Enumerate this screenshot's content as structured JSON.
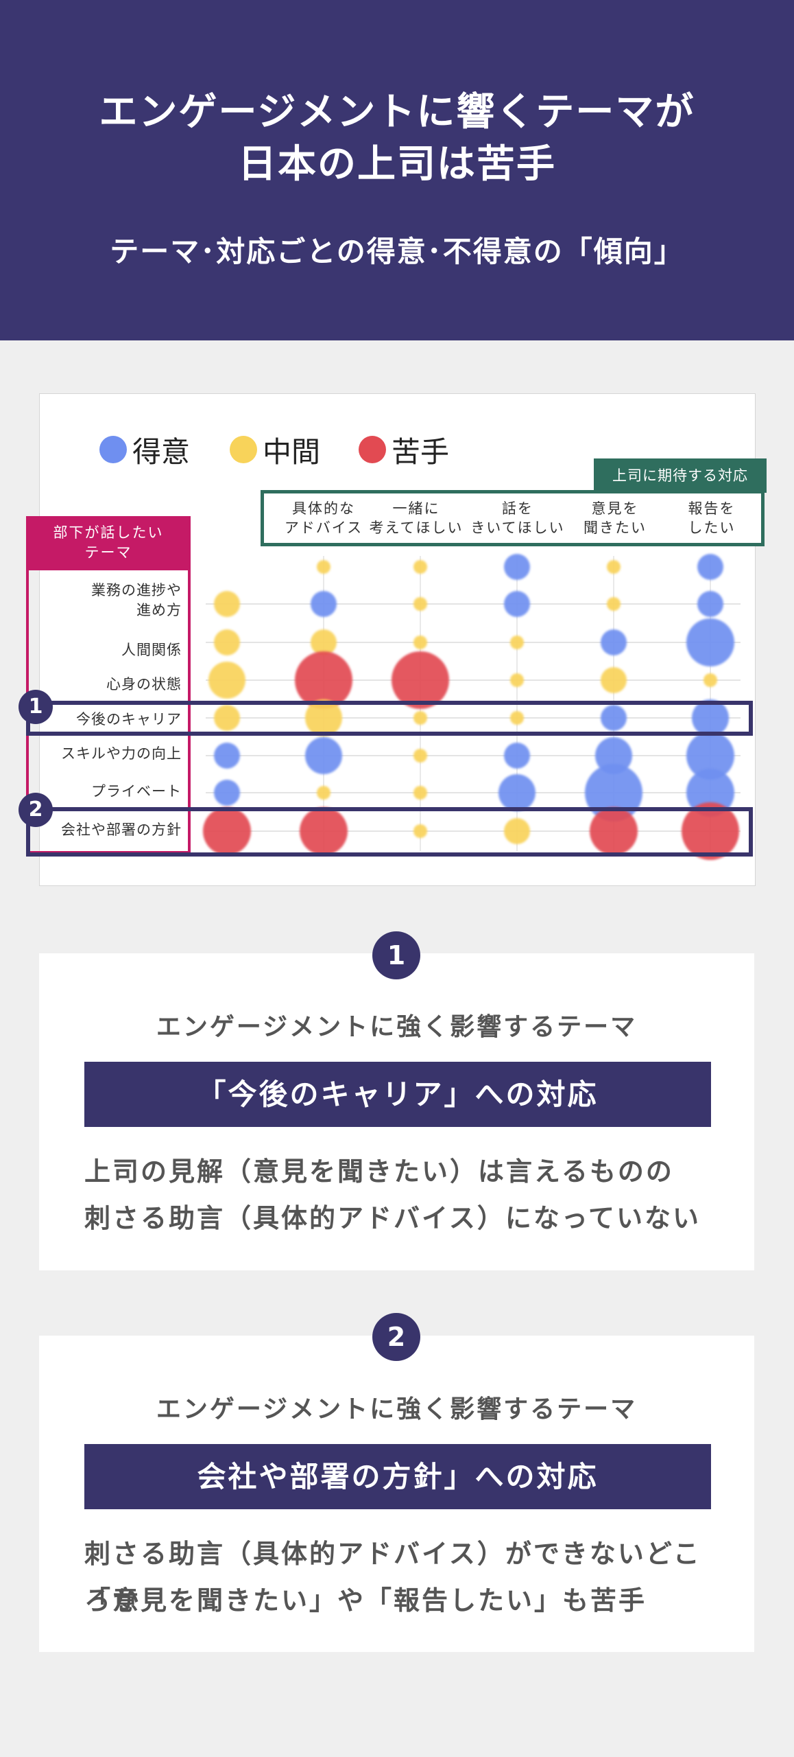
{
  "header": {
    "title_line1": "エンゲージメントに響くテーマが",
    "title_line2": "日本の上司は苦手",
    "subtitle": "テーマ･対応ごとの得意･不得意の「傾向」"
  },
  "legend": [
    {
      "label": "得意",
      "color": "#6f8ff0"
    },
    {
      "label": "中間",
      "color": "#f8d35a"
    },
    {
      "label": "苦手",
      "color": "#e24a52"
    }
  ],
  "boss_tag": "上司に期待する対応",
  "subordinate_tag": "部下が話したい\nテーマ",
  "chart_data": {
    "type": "bubble",
    "columns": [
      "具体的な\nアドバイス",
      "一緒に\n考えてほしい",
      "話を\nきいてほしい",
      "意見を\n聞きたい",
      "報告を\nしたい"
    ],
    "rows": [
      "業務の進捗や\n進め方",
      "人間関係",
      "心身の状態",
      "今後のキャリア",
      "スキルや力の向上",
      "プライベート",
      "会社や部署の方針"
    ],
    "top_row_values": [
      {
        "col": 0,
        "size": 1,
        "status": "mid"
      },
      {
        "col": 1,
        "size": 1,
        "status": "mid"
      },
      {
        "col": 2,
        "size": 2,
        "status": "good"
      },
      {
        "col": 3,
        "size": 1,
        "status": "mid"
      },
      {
        "col": 4,
        "size": 2,
        "status": "good"
      }
    ],
    "row_lead_values": [
      {
        "size": 2,
        "status": "mid"
      },
      {
        "size": 2,
        "status": "mid"
      },
      {
        "size": 3,
        "status": "mid"
      },
      {
        "size": 2,
        "status": "mid"
      },
      {
        "size": 2,
        "status": "good"
      },
      {
        "size": 2,
        "status": "good"
      },
      {
        "size": 4,
        "status": "bad"
      }
    ],
    "cells": [
      [
        {
          "size": 2,
          "status": "good"
        },
        {
          "size": 1,
          "status": "mid"
        },
        {
          "size": 2,
          "status": "good"
        },
        {
          "size": 1,
          "status": "mid"
        },
        {
          "size": 2,
          "status": "good"
        }
      ],
      [
        {
          "size": 2,
          "status": "mid"
        },
        {
          "size": 1,
          "status": "mid"
        },
        {
          "size": 1,
          "status": "mid"
        },
        {
          "size": 2,
          "status": "good"
        },
        {
          "size": 4,
          "status": "good"
        }
      ],
      [
        {
          "size": 5,
          "status": "bad"
        },
        {
          "size": 5,
          "status": "bad"
        },
        {
          "size": 1,
          "status": "mid"
        },
        {
          "size": 2,
          "status": "mid"
        },
        {
          "size": 1,
          "status": "mid"
        }
      ],
      [
        {
          "size": 3,
          "status": "mid"
        },
        {
          "size": 1,
          "status": "mid"
        },
        {
          "size": 1,
          "status": "mid"
        },
        {
          "size": 2,
          "status": "good"
        },
        {
          "size": 3,
          "status": "good"
        }
      ],
      [
        {
          "size": 3,
          "status": "good"
        },
        {
          "size": 1,
          "status": "mid"
        },
        {
          "size": 2,
          "status": "good"
        },
        {
          "size": 3,
          "status": "good"
        },
        {
          "size": 4,
          "status": "good"
        }
      ],
      [
        {
          "size": 1,
          "status": "mid"
        },
        {
          "size": 1,
          "status": "mid"
        },
        {
          "size": 3,
          "status": "good"
        },
        {
          "size": 5,
          "status": "good"
        },
        {
          "size": 4,
          "status": "good"
        }
      ],
      [
        {
          "size": 4,
          "status": "bad"
        },
        {
          "size": 1,
          "status": "mid"
        },
        {
          "size": 2,
          "status": "mid"
        },
        {
          "size": 4,
          "status": "bad"
        },
        {
          "size": 5,
          "status": "bad"
        }
      ]
    ],
    "highlighted_rows": [
      {
        "row": 3,
        "label": "1"
      },
      {
        "row": 6,
        "label": "2"
      }
    ]
  },
  "cards": [
    {
      "num": "1",
      "lead": "エンゲージメントに強く影響するテーマ",
      "bar": "「今後のキャリア」への対応",
      "body_line1": "上司の見解（意見を聞きたい）は言えるものの",
      "body_line2": "刺さる助言（具体的アドバイス）になっていない"
    },
    {
      "num": "2",
      "lead": "エンゲージメントに強く影響するテーマ",
      "bar": "会社や部署の方針」への対応",
      "body_line1": "刺さる助言（具体的アドバイス）ができないどころか",
      "body_line2": "「意見を聞きたい」や「報告したい」も苦手"
    }
  ]
}
